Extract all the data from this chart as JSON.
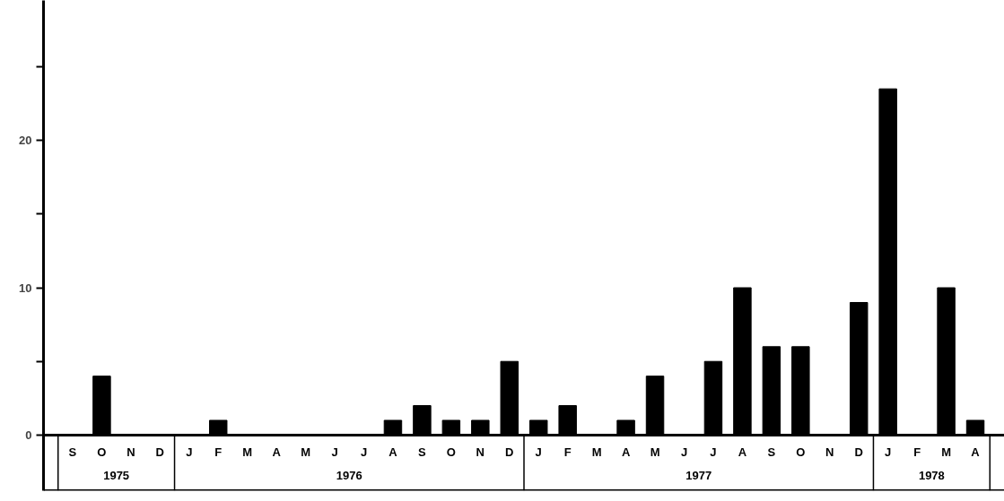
{
  "chart_data": {
    "type": "bar",
    "categories": [
      "S",
      "O",
      "N",
      "D",
      "J",
      "F",
      "M",
      "A",
      "M",
      "J",
      "J",
      "A",
      "S",
      "O",
      "N",
      "D",
      "J",
      "F",
      "M",
      "A",
      "M",
      "J",
      "J",
      "A",
      "S",
      "O",
      "N",
      "D",
      "J",
      "F",
      "M",
      "A"
    ],
    "values": [
      0,
      4,
      0,
      0,
      0,
      1,
      0,
      0,
      0,
      0,
      0,
      1,
      2,
      1,
      1,
      5,
      1,
      2,
      0,
      1,
      4,
      0,
      5,
      10,
      6,
      6,
      0,
      9,
      23.5,
      0,
      10,
      1
    ],
    "color": "#000000",
    "ylim": [
      0,
      29.5
    ],
    "yticks": [
      0,
      {
        "value": 5,
        "label": null
      },
      10,
      {
        "value": 15,
        "label": null
      },
      20,
      {
        "value": 25,
        "label": null
      }
    ],
    "annotations": [
      "1975",
      "1976",
      "1977",
      "1978"
    ]
  }
}
